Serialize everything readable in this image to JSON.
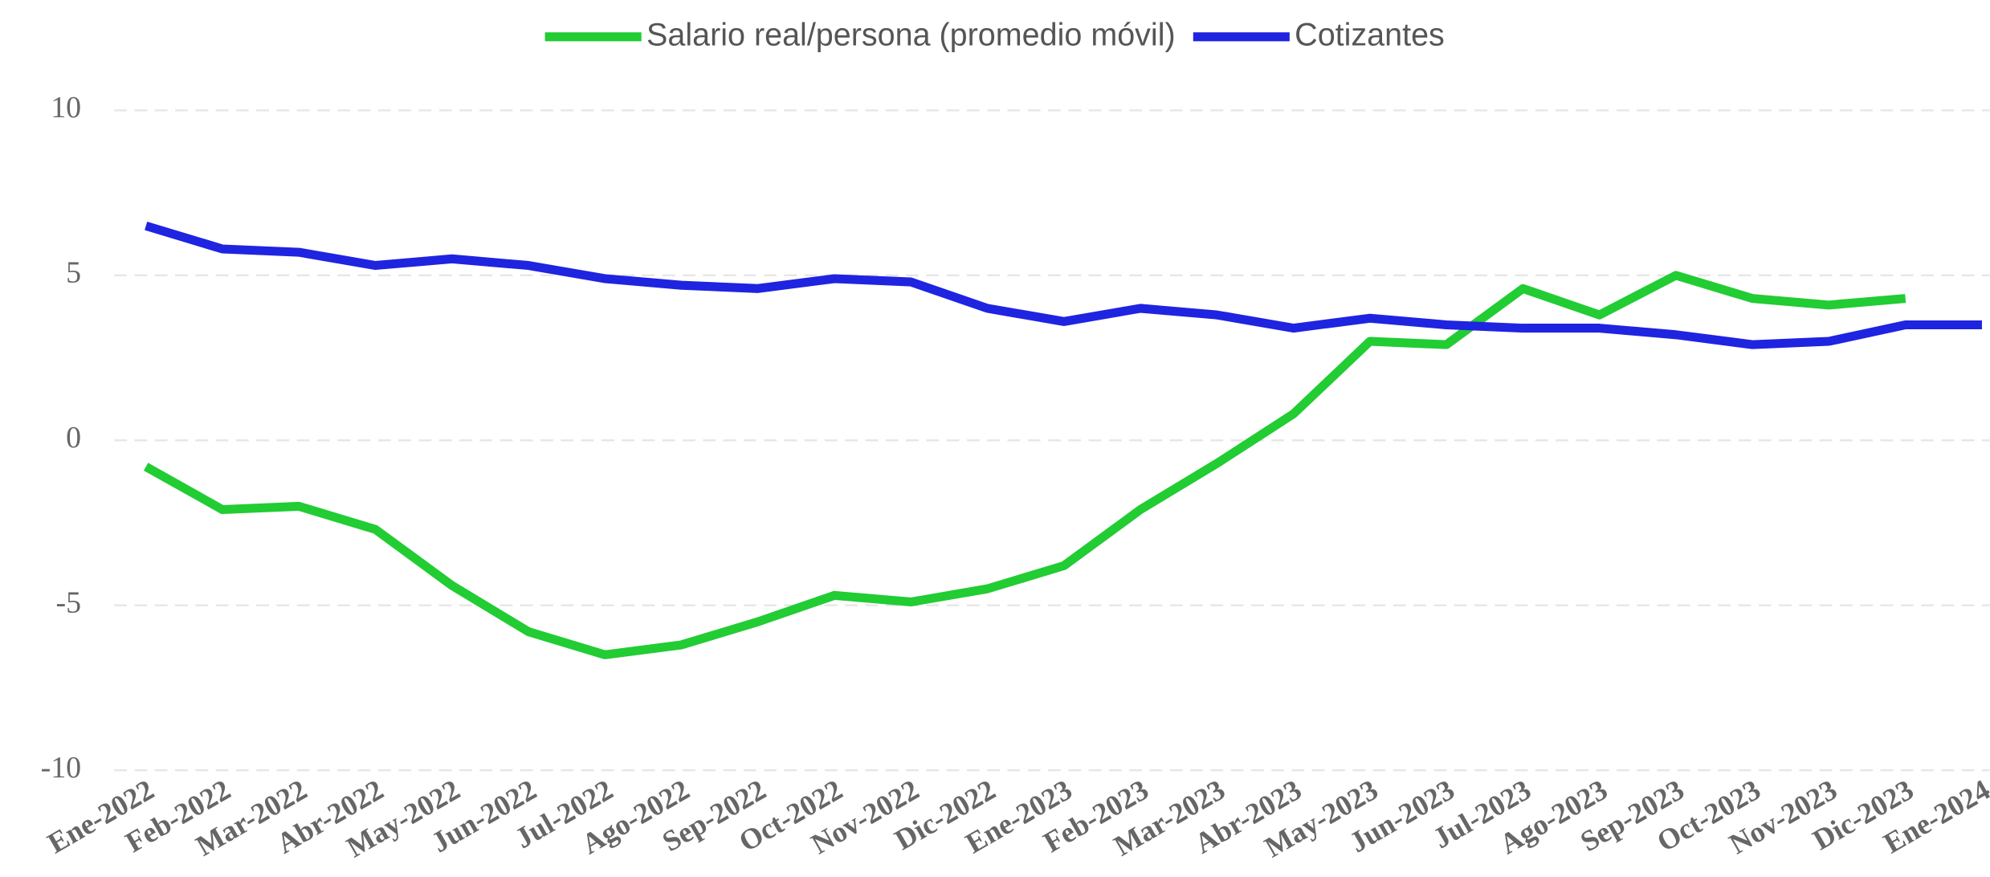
{
  "chart_data": {
    "type": "line",
    "categories": [
      "Ene-2022",
      "Feb-2022",
      "Mar-2022",
      "Abr-2022",
      "May-2022",
      "Jun-2022",
      "Jul-2022",
      "Ago-2022",
      "Sep-2022",
      "Oct-2022",
      "Nov-2022",
      "Dic-2022",
      "Ene-2023",
      "Feb-2023",
      "Mar-2023",
      "Abr-2023",
      "May-2023",
      "Jun-2023",
      "Jul-2023",
      "Ago-2023",
      "Sep-2023",
      "Oct-2023",
      "Nov-2023",
      "Dic-2023",
      "Ene-2024"
    ],
    "series": [
      {
        "name": "Salario real/persona (promedio móvil)",
        "color": "#22cc33",
        "values": [
          -0.8,
          -2.1,
          -2.0,
          -2.7,
          -4.4,
          -5.8,
          -6.5,
          -6.2,
          -5.5,
          -4.7,
          -4.9,
          -4.5,
          -3.8,
          -2.1,
          -0.7,
          0.8,
          3.0,
          2.9,
          4.6,
          3.8,
          5.0,
          4.3,
          4.1,
          4.3,
          null
        ]
      },
      {
        "name": "Cotizantes",
        "color": "#1f24e0",
        "values": [
          6.5,
          5.8,
          5.7,
          5.3,
          5.5,
          5.3,
          4.9,
          4.7,
          4.6,
          4.9,
          4.8,
          4.0,
          3.6,
          4.0,
          3.8,
          3.4,
          3.7,
          3.5,
          3.4,
          3.4,
          3.2,
          2.9,
          3.0,
          3.5,
          3.5
        ]
      }
    ],
    "ylim": [
      -10,
      10
    ],
    "yticks": [
      -10,
      -5,
      0,
      5,
      10
    ],
    "grid": true,
    "legend": "top"
  }
}
